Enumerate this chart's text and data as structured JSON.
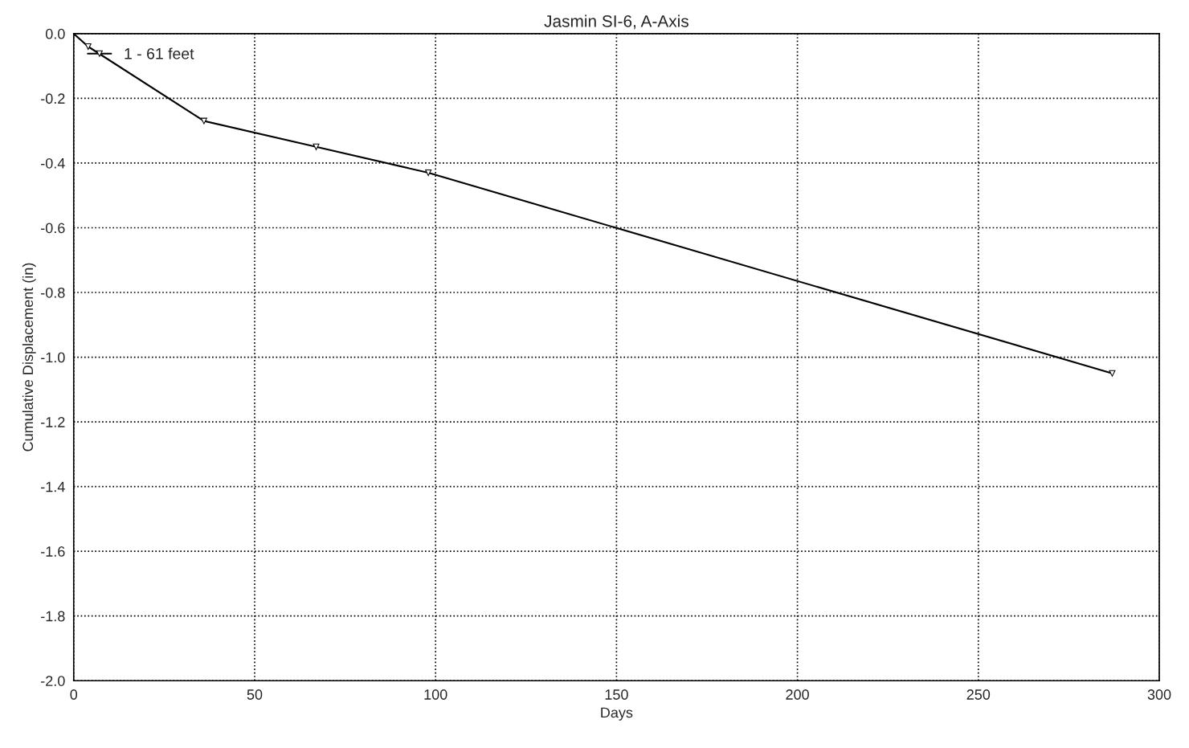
{
  "chart_data": {
    "type": "line",
    "title": "Jasmin SI-6, A-Axis",
    "xlabel": "Days",
    "ylabel": "Cumulative Displacement (in)",
    "series": [
      {
        "name": "1 - 61 feet",
        "color": "#000000",
        "x": [
          0,
          4,
          36,
          67,
          98,
          287
        ],
        "values": [
          0,
          -0.04,
          -0.27,
          -0.35,
          -0.43,
          -1.05
        ]
      }
    ],
    "xlim": [
      0,
      300
    ],
    "xticks": [
      0,
      50,
      100,
      150,
      200,
      250,
      300
    ],
    "ylim": [
      -2.0,
      0.0
    ],
    "yticks": [
      {
        "value": 0,
        "label": "0.0"
      },
      -0.2,
      -0.4,
      -0.6,
      -0.8,
      {
        "value": -1,
        "label": "-1.0"
      },
      -1.2,
      -1.4,
      -1.6,
      -1.8,
      {
        "value": -2,
        "label": "-2.0"
      }
    ],
    "grid": true,
    "legend": "top left",
    "marker": "triangle",
    "line_style": "solid"
  }
}
